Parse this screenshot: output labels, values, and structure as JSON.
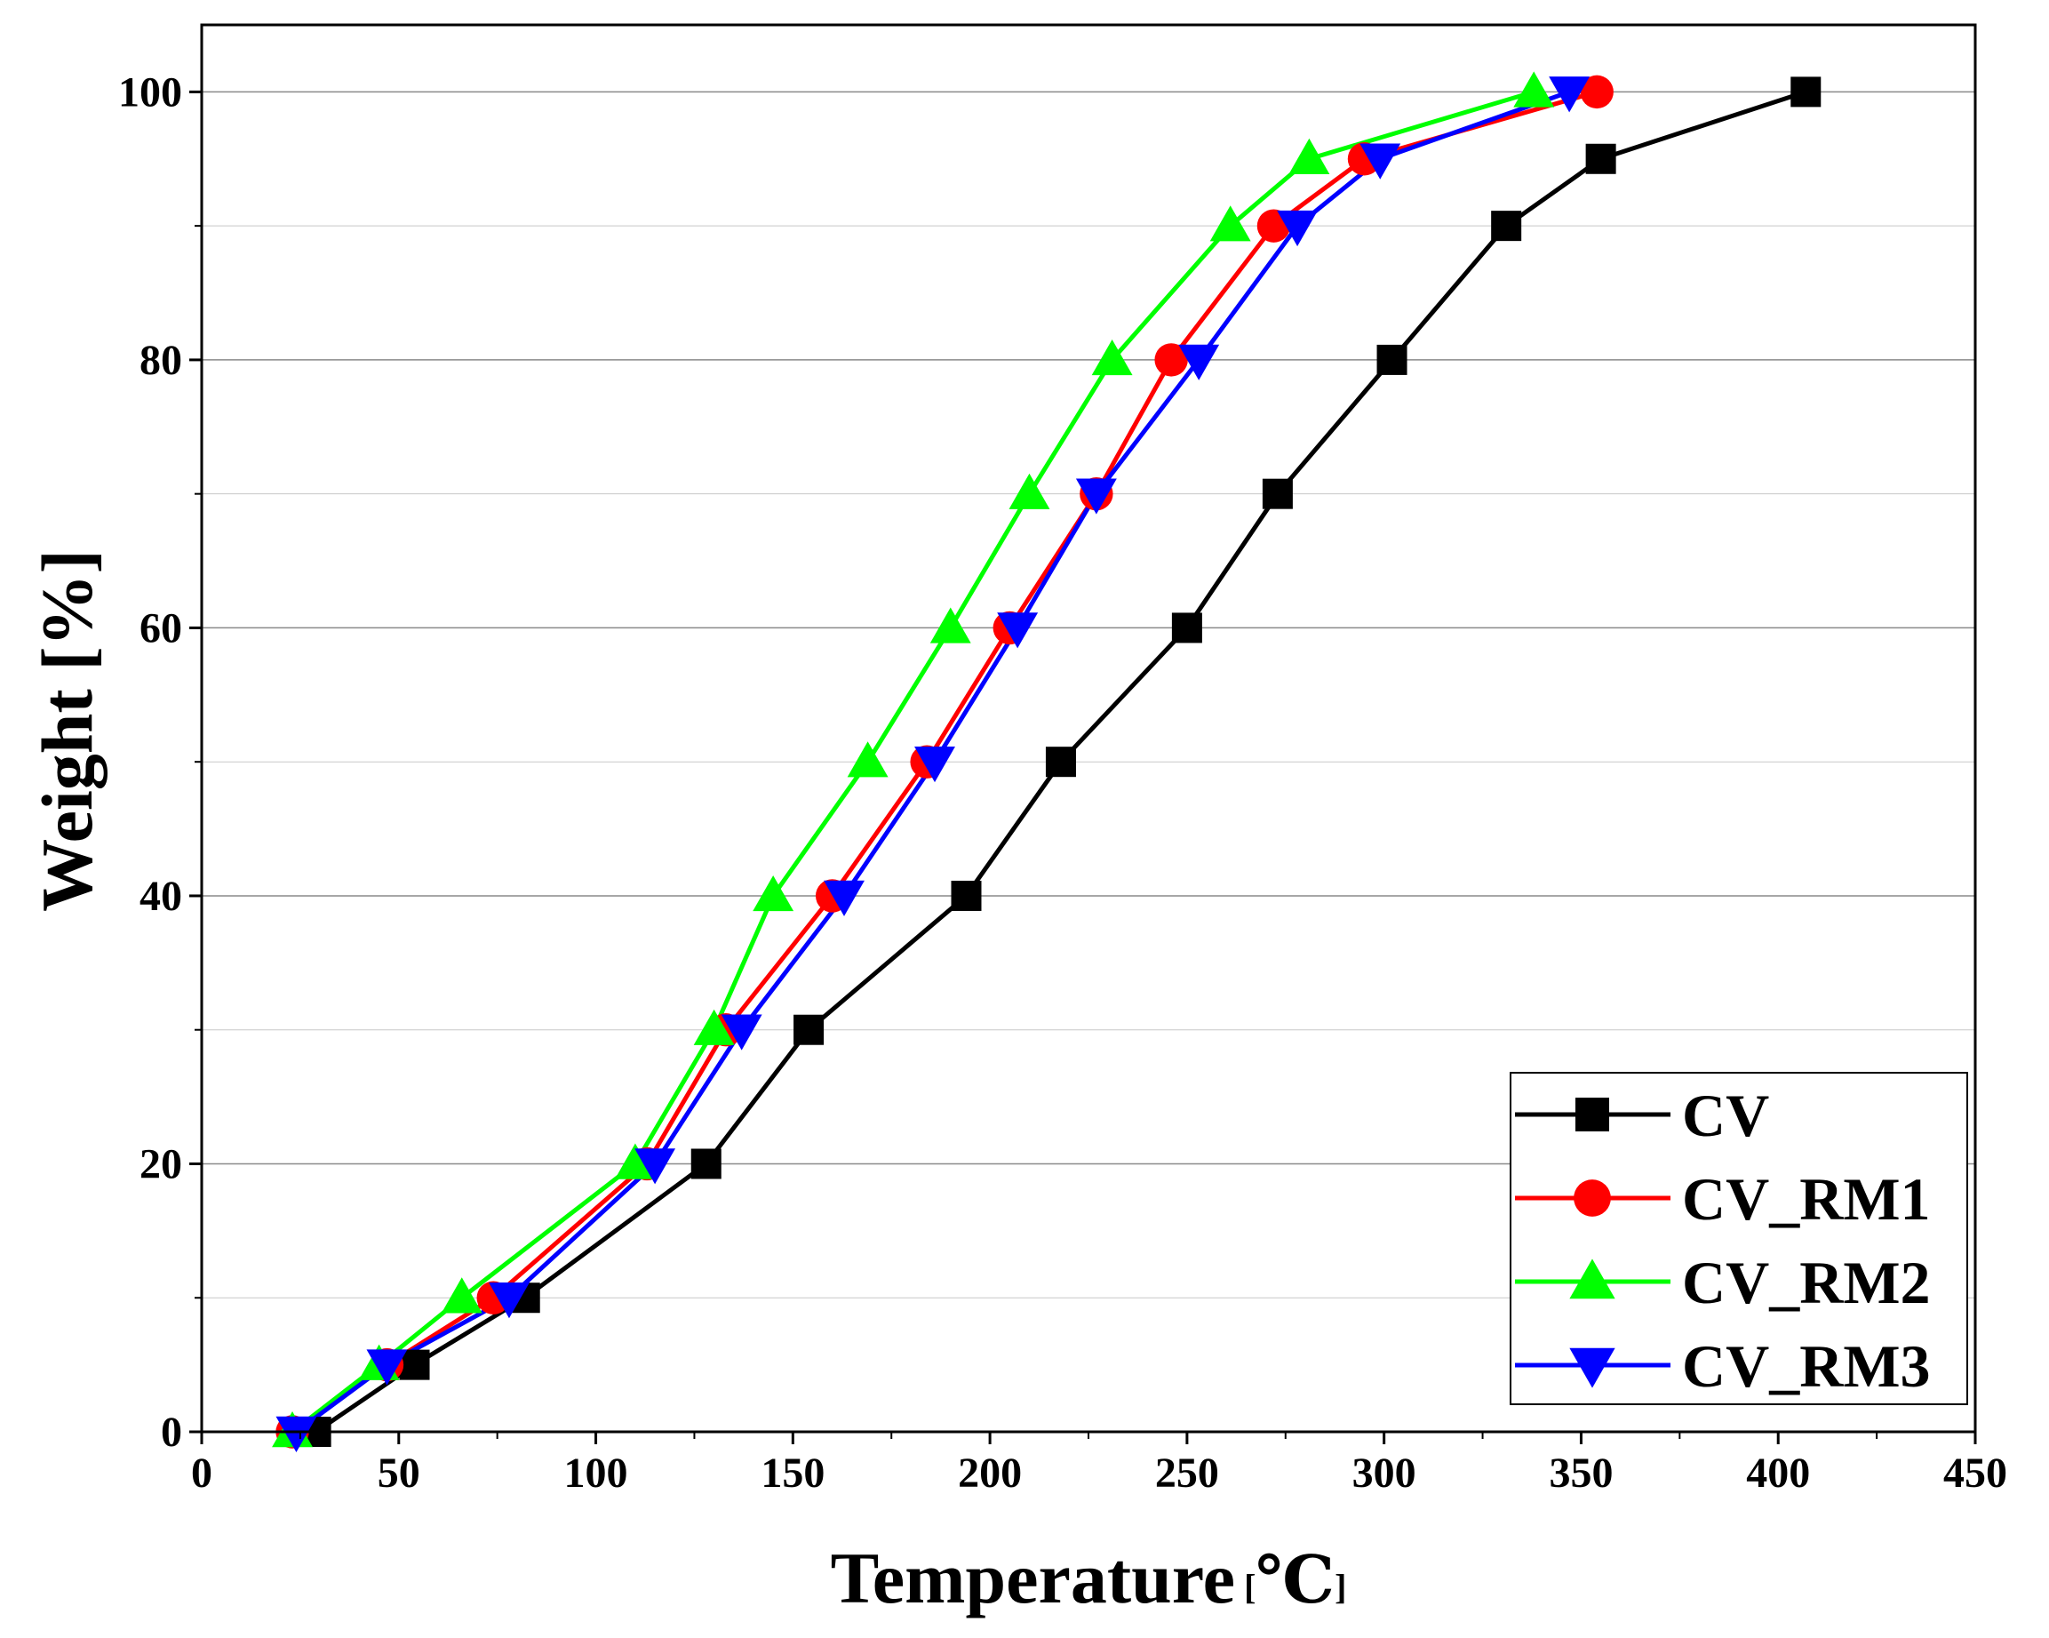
{
  "chart_data": {
    "type": "line",
    "xlabel": "Temperature",
    "xlabel_unit": "℃",
    "ylabel": "Weight [%]",
    "xlim": [
      0,
      450
    ],
    "ylim": [
      0,
      105
    ],
    "xticks": [
      0,
      50,
      100,
      150,
      200,
      250,
      300,
      350,
      400,
      450
    ],
    "yticks": [
      0,
      20,
      40,
      60,
      80,
      100
    ],
    "grid": true,
    "legend_position": "bottom-right",
    "y": [
      0,
      5,
      10,
      20,
      30,
      40,
      50,
      60,
      70,
      80,
      90,
      95,
      100
    ],
    "series": [
      {
        "name": "CV",
        "color": "#000000",
        "marker": "square",
        "x": [
          29,
          54,
          82,
          128,
          154,
          194,
          218,
          250,
          273,
          302,
          331,
          355,
          407
        ]
      },
      {
        "name": "CV_RM1",
        "color": "#ff0000",
        "marker": "circle",
        "x": [
          23,
          47,
          74,
          113,
          133,
          160,
          184,
          205,
          227,
          246,
          272,
          295,
          354
        ]
      },
      {
        "name": "CV_RM2",
        "color": "#00ff00",
        "marker": "triangle-up",
        "x": [
          23,
          45,
          66,
          110,
          130,
          145,
          169,
          190,
          210,
          231,
          261,
          281,
          338
        ]
      },
      {
        "name": "CV_RM3",
        "color": "#0000ff",
        "marker": "triangle-down",
        "x": [
          24,
          47,
          78,
          115,
          137,
          163,
          186,
          207,
          227,
          253,
          278,
          299,
          347
        ]
      }
    ]
  }
}
